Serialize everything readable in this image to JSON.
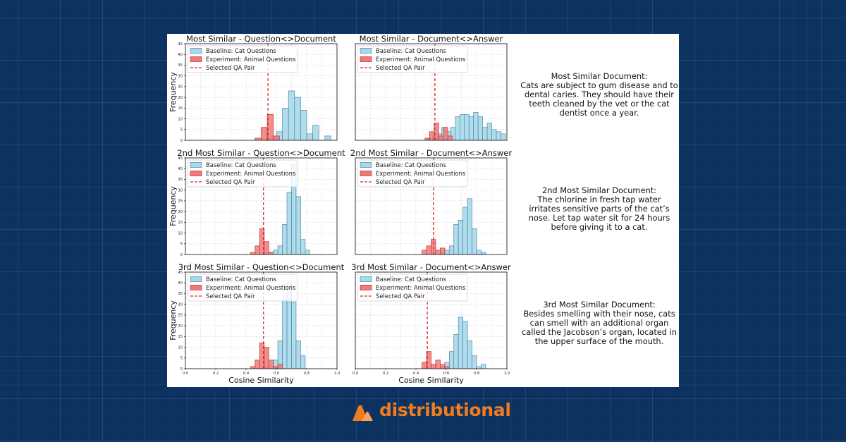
{
  "colors": {
    "baseline_fill": "#a8d8ea",
    "baseline_edge": "#4a8aa8",
    "experiment_fill": "#f07a7a",
    "experiment_edge": "#c03030",
    "selected_line": "#e02424",
    "brand_orange": "#f07c1e"
  },
  "brand": {
    "name": "distributional",
    "icon": "distributional-logo-icon"
  },
  "documents": [
    {
      "lines": [
        "Most Similar Document:",
        "Cats are subject to gum disease and to",
        "dental caries. They should have their",
        "teeth cleaned by the vet or the cat",
        "dentist once a year."
      ]
    },
    {
      "lines": [
        "2nd Most Similar Document:",
        "The chlorine in fresh tap water",
        "irritates sensitive parts of the cat’s",
        "nose. Let tap water sit for 24 hours",
        "before giving it to a cat."
      ]
    },
    {
      "lines": [
        "3rd Most Similar Document:",
        "Besides smelling with their nose, cats",
        "can smell with an additional organ",
        "called the Jacobson’s organ, located in",
        "the upper surface of the mouth."
      ]
    }
  ],
  "chart_data": [
    {
      "type": "bar",
      "title": "Most Similar - Question<>Document",
      "xlabel": "",
      "ylabel": "Frequency",
      "xlim": [
        0.0,
        1.0
      ],
      "ylim": [
        0,
        45
      ],
      "grid": true,
      "legend_position": "top-left",
      "xticks": [],
      "yticks": [
        "0",
        "5",
        "10",
        "15",
        "20",
        "25",
        "30",
        "35",
        "40",
        "45"
      ],
      "bin_width": 0.04,
      "series": [
        {
          "name": "Baseline: Cat Questions",
          "bins": [
            0.56,
            0.6,
            0.64,
            0.68,
            0.72,
            0.76,
            0.8,
            0.84,
            0.88,
            0.92
          ],
          "counts": [
            2,
            4,
            15,
            23,
            20,
            14,
            3,
            7,
            0,
            2
          ]
        },
        {
          "name": "Experiment: Animal Questions",
          "bins": [
            0.46,
            0.5,
            0.54,
            0.58
          ],
          "counts": [
            1,
            6,
            12,
            2
          ]
        }
      ],
      "selected_qa_pair": {
        "name": "Selected QA Pair",
        "x": 0.545
      }
    },
    {
      "type": "bar",
      "title": "Most Similar - Document<>Answer",
      "xlabel": "",
      "ylabel": "",
      "xlim": [
        0.0,
        1.0
      ],
      "ylim": [
        0,
        45
      ],
      "grid": true,
      "legend_position": "top-left",
      "xticks": [],
      "yticks": [],
      "bin_width": 0.03,
      "series": [
        {
          "name": "Baseline: Cat Questions",
          "bins": [
            0.48,
            0.51,
            0.54,
            0.57,
            0.6,
            0.63,
            0.66,
            0.69,
            0.72,
            0.75,
            0.78,
            0.81,
            0.84,
            0.87,
            0.9,
            0.93,
            0.96
          ],
          "counts": [
            1,
            2,
            3,
            6,
            4,
            6,
            11,
            12,
            12,
            11,
            13,
            11,
            6,
            8,
            5,
            4,
            3
          ]
        },
        {
          "name": "Experiment: Animal Questions",
          "bins": [
            0.46,
            0.49,
            0.52,
            0.55,
            0.58,
            0.61
          ],
          "counts": [
            1,
            4,
            8,
            2,
            6,
            2
          ]
        }
      ],
      "selected_qa_pair": {
        "name": "Selected QA Pair",
        "x": 0.525
      }
    },
    {
      "type": "bar",
      "title": "2nd Most Similar - Question<>Document",
      "xlabel": "",
      "ylabel": "Frequency",
      "xlim": [
        0.0,
        1.0
      ],
      "ylim": [
        0,
        45
      ],
      "grid": true,
      "legend_position": "top-left",
      "xticks": [],
      "yticks": [
        "0",
        "5",
        "10",
        "15",
        "20",
        "25",
        "30",
        "35",
        "40",
        "45"
      ],
      "bin_width": 0.03,
      "series": [
        {
          "name": "Baseline: Cat Questions",
          "bins": [
            0.52,
            0.55,
            0.58,
            0.61,
            0.64,
            0.67,
            0.7,
            0.73,
            0.76,
            0.79
          ],
          "counts": [
            1,
            1,
            2,
            4,
            14,
            29,
            42,
            27,
            7,
            2
          ]
        },
        {
          "name": "Experiment: Animal Questions",
          "bins": [
            0.43,
            0.46,
            0.49,
            0.52,
            0.55
          ],
          "counts": [
            1,
            4,
            12,
            6,
            1
          ]
        }
      ],
      "selected_qa_pair": {
        "name": "Selected QA Pair",
        "x": 0.515
      }
    },
    {
      "type": "bar",
      "title": "2nd Most Similar - Document<>Answer",
      "xlabel": "",
      "ylabel": "",
      "xlim": [
        0.0,
        1.0
      ],
      "ylim": [
        0,
        45
      ],
      "grid": true,
      "legend_position": "top-left",
      "xticks": [],
      "yticks": [],
      "bin_width": 0.03,
      "series": [
        {
          "name": "Baseline: Cat Questions",
          "bins": [
            0.56,
            0.59,
            0.62,
            0.65,
            0.68,
            0.71,
            0.74,
            0.77,
            0.8,
            0.83
          ],
          "counts": [
            1,
            2,
            4,
            14,
            16,
            22,
            26,
            12,
            2,
            1
          ]
        },
        {
          "name": "Experiment: Animal Questions",
          "bins": [
            0.44,
            0.47,
            0.5,
            0.53,
            0.56
          ],
          "counts": [
            2,
            4,
            7,
            2,
            3
          ]
        }
      ],
      "selected_qa_pair": {
        "name": "Selected QA Pair",
        "x": 0.515
      }
    },
    {
      "type": "bar",
      "title": "3rd Most Similar - Question<>Document",
      "xlabel": "Cosine Similarity",
      "ylabel": "Frequency",
      "xlim": [
        0.0,
        1.0
      ],
      "ylim": [
        0,
        45
      ],
      "grid": true,
      "legend_position": "top-left",
      "xticks": [
        "0.0",
        "0.2",
        "0.4",
        "0.6",
        "0.8",
        "1.0"
      ],
      "yticks": [
        "0",
        "5",
        "10",
        "15",
        "20",
        "25",
        "30",
        "35",
        "40",
        "45"
      ],
      "bin_width": 0.03,
      "series": [
        {
          "name": "Baseline: Cat Questions",
          "bins": [
            0.52,
            0.55,
            0.58,
            0.61,
            0.64,
            0.67,
            0.7,
            0.73,
            0.76
          ],
          "counts": [
            1,
            1,
            4,
            13,
            32,
            40,
            31,
            13,
            6
          ]
        },
        {
          "name": "Experiment: Animal Questions",
          "bins": [
            0.43,
            0.46,
            0.49,
            0.52,
            0.55,
            0.58,
            0.61
          ],
          "counts": [
            1,
            4,
            12,
            10,
            4,
            1,
            2
          ]
        }
      ],
      "selected_qa_pair": {
        "name": "Selected QA Pair",
        "x": 0.515
      }
    },
    {
      "type": "bar",
      "title": "3rd Most Similar - Document<>Answer",
      "xlabel": "Cosine Similarity",
      "ylabel": "",
      "xlim": [
        0.0,
        1.0
      ],
      "ylim": [
        0,
        45
      ],
      "grid": true,
      "legend_position": "top-left",
      "xticks": [
        "0.0",
        "0.2",
        "0.4",
        "0.6",
        "0.8",
        "1.0"
      ],
      "yticks": [],
      "bin_width": 0.03,
      "series": [
        {
          "name": "Baseline: Cat Questions",
          "bins": [
            0.56,
            0.59,
            0.62,
            0.65,
            0.68,
            0.71,
            0.74,
            0.77,
            0.8,
            0.83
          ],
          "counts": [
            1,
            3,
            8,
            16,
            24,
            22,
            13,
            6,
            1,
            2
          ]
        },
        {
          "name": "Experiment: Animal Questions",
          "bins": [
            0.44,
            0.47,
            0.5,
            0.53,
            0.56,
            0.59
          ],
          "counts": [
            3,
            8,
            2,
            4,
            2,
            1
          ]
        }
      ],
      "selected_qa_pair": {
        "name": "Selected QA Pair",
        "x": 0.475
      }
    }
  ]
}
